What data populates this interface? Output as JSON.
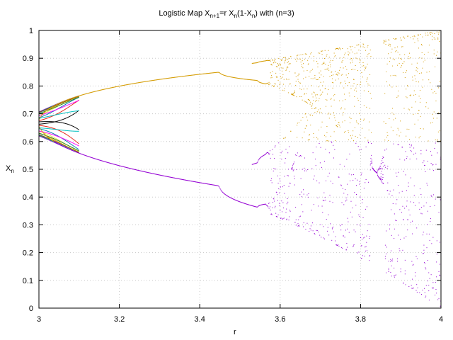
{
  "chart_data": {
    "type": "scatter",
    "title": {
      "prefix": "Logistic Map X",
      "sub1": "n+1",
      "mid1": "=r X",
      "sub2": "n",
      "mid2": "(1-X",
      "sub3": "n",
      "suffix": ") with (n=3)"
    },
    "xlabel": "r",
    "ylabel": {
      "base": "X",
      "sub": "n"
    },
    "xlim": [
      3,
      4
    ],
    "ylim": [
      0,
      1
    ],
    "x_ticks": [
      "3",
      "3.2",
      "3.4",
      "3.6",
      "3.8",
      "4"
    ],
    "y_ticks": [
      "0",
      "0.1",
      "0.2",
      "0.3",
      "0.4",
      "0.5",
      "0.6",
      "0.7",
      "0.8",
      "0.9",
      "1"
    ],
    "grid": true,
    "series": [
      {
        "color": "#d49b00",
        "description_points": [
          [
            3.08,
            0.75
          ],
          [
            3.2,
            0.8
          ],
          [
            3.3,
            0.83
          ],
          [
            3.4,
            0.845
          ],
          [
            3.53,
            0.86
          ]
        ]
      },
      {
        "color": "#9400d3",
        "description_points": [
          [
            3.1,
            0.56
          ],
          [
            3.2,
            0.52
          ],
          [
            3.3,
            0.48
          ],
          [
            3.4,
            0.455
          ],
          [
            3.53,
            0.42
          ]
        ]
      }
    ],
    "transient_colors": [
      "#9400d3",
      "#009e73",
      "#56b4e9",
      "#e69f00",
      "#f0e442",
      "#0072b2",
      "#e51e10",
      "#000000",
      "#00bfbf",
      "#ff00ff",
      "#228b22",
      "#8b4513"
    ]
  }
}
